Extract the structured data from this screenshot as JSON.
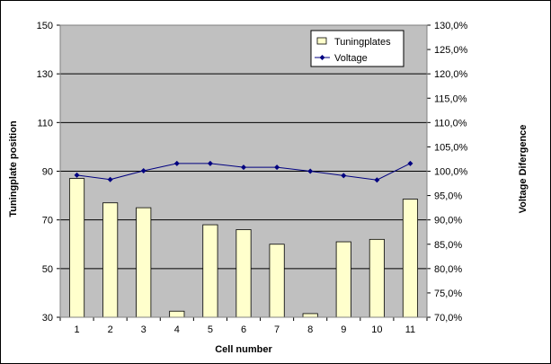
{
  "chart_data": {
    "type": "bar",
    "xlabel": "Cell number",
    "ylabel": "Tuningplate position",
    "y2label": "Voltage Difergence",
    "categories": [
      "1",
      "2",
      "3",
      "4",
      "5",
      "6",
      "7",
      "8",
      "9",
      "10",
      "11"
    ],
    "ylim": [
      30,
      150
    ],
    "y_ticks": [
      "30",
      "50",
      "70",
      "90",
      "110",
      "130",
      "150"
    ],
    "y2lim": [
      70,
      130
    ],
    "y2_ticks": [
      "70,0%",
      "75,0%",
      "80,0%",
      "85,0%",
      "90,0%",
      "95,0%",
      "100,0%",
      "105,0%",
      "110,0%",
      "115,0%",
      "120,0%",
      "125,0%",
      "130,0%"
    ],
    "grid": true,
    "legend_position": "top-right",
    "series": [
      {
        "name": "Tuningplates",
        "kind": "bar",
        "axis": "left",
        "color": "#FFFFCC",
        "values": [
          87,
          77,
          75,
          32.5,
          68,
          66,
          60,
          31.5,
          61,
          62,
          78.5
        ]
      },
      {
        "name": "Voltage",
        "kind": "line",
        "axis": "right",
        "color": "#000080",
        "values": [
          99.2,
          98.3,
          100.1,
          101.6,
          101.6,
          100.8,
          100.8,
          100.0,
          99.1,
          98.2,
          101.6
        ]
      }
    ],
    "plot_background": "#C0C0C0"
  }
}
